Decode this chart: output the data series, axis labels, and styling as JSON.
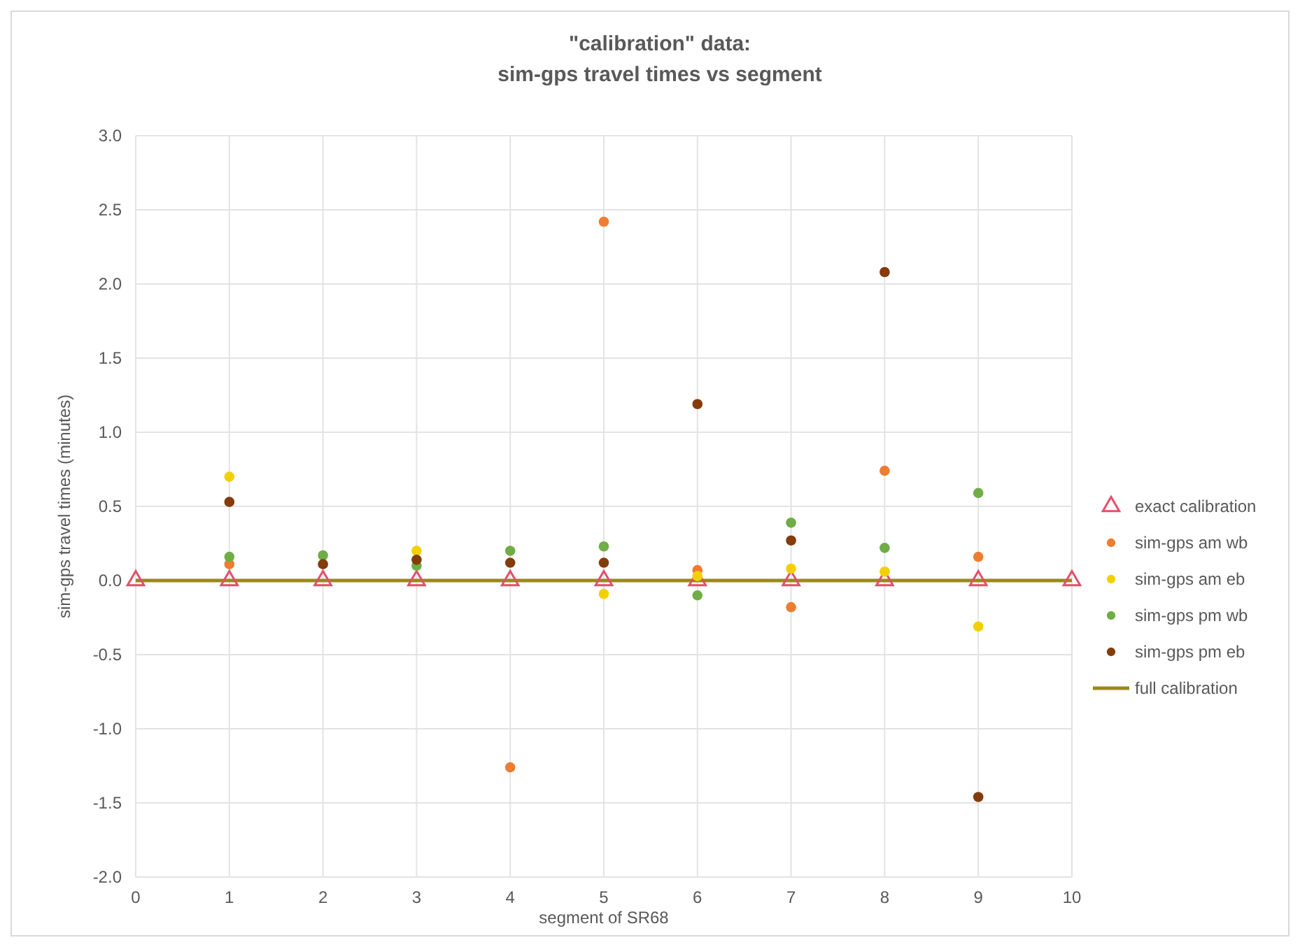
{
  "chart_data": {
    "type": "scatter",
    "title": "\"calibration\" data:",
    "subtitle": "sim-gps travel times vs segment",
    "xlabel": "segment of SR68",
    "ylabel": "sim-gps travel times (minutes)",
    "xlim": [
      0,
      10
    ],
    "xticks": [
      0,
      1,
      2,
      3,
      4,
      5,
      6,
      7,
      8,
      9,
      10
    ],
    "ylim": [
      -2,
      3
    ],
    "yticks": [
      {
        "value": -2,
        "label": "-2.0"
      },
      {
        "value": -1.5,
        "label": "-1.5"
      },
      {
        "value": -1,
        "label": "-1.0"
      },
      {
        "value": -0.5,
        "label": "-0.5"
      },
      {
        "value": 0,
        "label": "0.0"
      },
      {
        "value": 0.5,
        "label": "0.5"
      },
      {
        "value": 1,
        "label": "1.0"
      },
      {
        "value": 1.5,
        "label": "1.5"
      },
      {
        "value": 2,
        "label": "2.0"
      },
      {
        "value": 2.5,
        "label": "2.5"
      },
      {
        "value": 3,
        "label": "3.0"
      }
    ],
    "grid": true,
    "legend": "right",
    "series": [
      {
        "name": "exact calibration",
        "color": "#e0506a",
        "marker": "triangle",
        "x": [
          0,
          1,
          2,
          3,
          4,
          5,
          6,
          7,
          8,
          9,
          10
        ],
        "values": [
          0,
          0,
          0,
          0,
          0,
          0,
          0,
          0,
          0,
          0,
          0
        ]
      },
      {
        "name": "sim-gps am wb",
        "color": "#ed7d31",
        "marker": "circle",
        "x": [
          1,
          2,
          3,
          4,
          5,
          6,
          7,
          8,
          9
        ],
        "values": [
          0.11,
          null,
          null,
          -1.26,
          2.42,
          0.07,
          -0.18,
          0.74,
          0.16
        ]
      },
      {
        "name": "sim-gps am eb",
        "color": "#f2d000",
        "marker": "circle",
        "x": [
          1,
          2,
          3,
          4,
          5,
          6,
          7,
          8,
          9
        ],
        "values": [
          0.7,
          null,
          0.2,
          null,
          -0.09,
          0.03,
          0.08,
          0.06,
          -0.31
        ]
      },
      {
        "name": "sim-gps pm wb",
        "color": "#70ad47",
        "marker": "circle",
        "x": [
          1,
          2,
          3,
          4,
          5,
          6,
          7,
          8,
          9
        ],
        "values": [
          0.16,
          0.17,
          0.1,
          0.2,
          0.23,
          -0.1,
          0.39,
          0.22,
          0.59
        ]
      },
      {
        "name": "sim-gps pm eb",
        "color": "#843c0c",
        "marker": "circle",
        "x": [
          1,
          2,
          3,
          4,
          5,
          6,
          7,
          8,
          9
        ],
        "values": [
          0.53,
          0.11,
          0.14,
          0.12,
          0.12,
          1.19,
          0.27,
          2.08,
          -1.46
        ]
      },
      {
        "name": "full calibration",
        "type": "line",
        "color": "#9a8a10",
        "marker": "none",
        "line_style": "solid",
        "x": [
          0,
          10
        ],
        "values": [
          0,
          0
        ]
      }
    ]
  }
}
